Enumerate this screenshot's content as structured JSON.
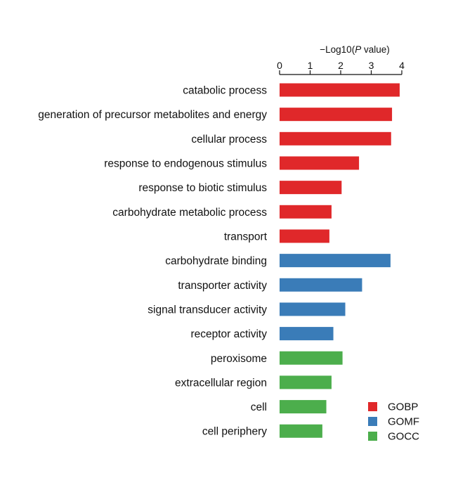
{
  "chart_data": {
    "type": "bar",
    "orientation": "horizontal",
    "xlabel_prefix": "−Log10(",
    "xlabel_italic": "P",
    "xlabel_suffix": " value)",
    "xlim": [
      0,
      4
    ],
    "xticks": [
      "0",
      "1",
      "2",
      "3",
      "4"
    ],
    "axis_position": "top",
    "grid": false,
    "legend_position": "bottom-right",
    "categories": [
      "catabolic process",
      "generation of precursor metabolites and energy",
      "cellular process",
      "response to endogenous stimulus",
      "response to biotic stimulus",
      "carbohydrate metabolic process",
      "transport",
      "carbohydrate binding",
      "transporter activity",
      "signal transducer activity",
      "receptor activity",
      "peroxisome",
      "extracellular region",
      "cell",
      "cell periphery"
    ],
    "values": [
      3.93,
      3.68,
      3.65,
      2.6,
      2.03,
      1.7,
      1.63,
      3.63,
      2.7,
      2.15,
      1.76,
      2.06,
      1.7,
      1.53,
      1.4
    ],
    "groups": [
      "GOBP",
      "GOBP",
      "GOBP",
      "GOBP",
      "GOBP",
      "GOBP",
      "GOBP",
      "GOMF",
      "GOMF",
      "GOMF",
      "GOMF",
      "GOCC",
      "GOCC",
      "GOCC",
      "GOCC"
    ],
    "legend": [
      {
        "name": "GOBP",
        "color": "#e0282a"
      },
      {
        "name": "GOMF",
        "color": "#3a7cb8"
      },
      {
        "name": "GOCC",
        "color": "#4cae4c"
      }
    ]
  }
}
